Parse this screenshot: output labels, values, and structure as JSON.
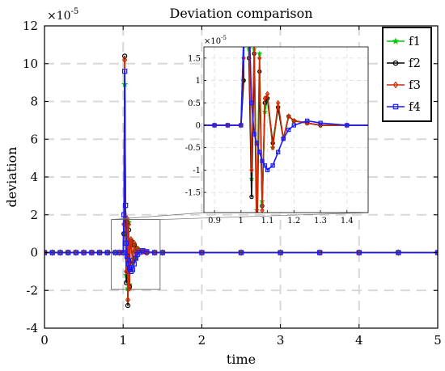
{
  "chart_data": {
    "type": "line",
    "title": "Deviation comparison",
    "xlabel": "time",
    "ylabel": "deviation",
    "xlim": [
      0,
      5
    ],
    "ylim": [
      -4,
      12
    ],
    "xticks": [
      0,
      1,
      2,
      3,
      4,
      5
    ],
    "yticks": [
      -4,
      -2,
      0,
      2,
      4,
      6,
      8,
      10,
      12
    ],
    "y_exponent_label": "×10",
    "y_exponent_power": "-5",
    "grid": true,
    "grid_style": "dashed",
    "legend_position": "top-right",
    "series": [
      {
        "name": "f1",
        "color": "#00c800",
        "marker": "star",
        "x": [
          0,
          0.1,
          0.2,
          0.3,
          0.4,
          0.5,
          0.6,
          0.7,
          0.8,
          0.9,
          0.95,
          1.0,
          1.01,
          1.02,
          1.03,
          1.04,
          1.05,
          1.06,
          1.07,
          1.08,
          1.09,
          1.1,
          1.12,
          1.14,
          1.16,
          1.18,
          1.2,
          1.25,
          1.3,
          1.4,
          1.5,
          2,
          2.5,
          3,
          3.5,
          4,
          4.5,
          5
        ],
        "y": [
          0,
          0,
          0,
          0,
          0,
          0,
          0,
          0,
          0,
          0,
          0,
          0,
          1,
          8.9,
          1.7,
          -1.2,
          1.7,
          -1.9,
          1.6,
          -1.7,
          0.3,
          0.6,
          -0.5,
          0.4,
          -0.3,
          0.2,
          0.1,
          0.05,
          0,
          0,
          0,
          0,
          0,
          0,
          0,
          0,
          0,
          0
        ]
      },
      {
        "name": "f2",
        "color": "#000000",
        "marker": "circle",
        "x": [
          0,
          0.1,
          0.2,
          0.3,
          0.4,
          0.5,
          0.6,
          0.7,
          0.8,
          0.9,
          0.95,
          1.0,
          1.01,
          1.02,
          1.03,
          1.04,
          1.05,
          1.06,
          1.07,
          1.08,
          1.09,
          1.1,
          1.12,
          1.14,
          1.16,
          1.18,
          1.2,
          1.25,
          1.3,
          1.4,
          1.5,
          2,
          2.5,
          3,
          3.5,
          4,
          4.5,
          5
        ],
        "y": [
          0,
          0,
          0,
          0,
          0,
          0,
          0,
          0,
          0,
          0,
          0,
          0,
          1,
          10.4,
          1.5,
          -1.6,
          1.6,
          -2.8,
          1.2,
          -1.8,
          0.5,
          0.6,
          -0.4,
          0.4,
          -0.3,
          0.2,
          0.1,
          0.05,
          0,
          0,
          0,
          0,
          0,
          0,
          0,
          0,
          0,
          0
        ]
      },
      {
        "name": "f3",
        "color": "#d42a00",
        "marker": "diamond",
        "x": [
          0,
          0.1,
          0.2,
          0.3,
          0.4,
          0.5,
          0.6,
          0.7,
          0.8,
          0.9,
          0.95,
          1.0,
          1.01,
          1.02,
          1.03,
          1.04,
          1.05,
          1.06,
          1.07,
          1.08,
          1.09,
          1.1,
          1.12,
          1.14,
          1.16,
          1.18,
          1.2,
          1.25,
          1.3,
          1.4,
          1.5,
          2,
          2.5,
          3,
          3.5,
          4,
          4.5,
          5
        ],
        "y": [
          0,
          0,
          0,
          0,
          0,
          0,
          0,
          0,
          0,
          0,
          0,
          0,
          1.5,
          10.2,
          1.8,
          -1.0,
          1.8,
          -2.5,
          1.5,
          -1.9,
          0.6,
          0.7,
          -0.5,
          0.5,
          -0.3,
          0.2,
          0.1,
          0.05,
          0,
          0,
          0,
          0,
          0,
          0,
          0,
          0,
          0,
          0
        ]
      },
      {
        "name": "f4",
        "color": "#1a1aff",
        "marker": "square",
        "x": [
          0,
          0.1,
          0.2,
          0.3,
          0.4,
          0.5,
          0.6,
          0.7,
          0.8,
          0.9,
          0.95,
          1.0,
          1.01,
          1.02,
          1.03,
          1.04,
          1.05,
          1.06,
          1.07,
          1.08,
          1.09,
          1.1,
          1.12,
          1.14,
          1.16,
          1.18,
          1.2,
          1.25,
          1.3,
          1.4,
          1.5,
          2,
          2.5,
          3,
          3.5,
          4,
          4.5,
          5
        ],
        "y": [
          0,
          0,
          0,
          0,
          0,
          0,
          0,
          0,
          0,
          0,
          0,
          0,
          2,
          9.6,
          2.5,
          0.5,
          -0.2,
          -0.4,
          -0.6,
          -0.8,
          -0.9,
          -1.0,
          -0.9,
          -0.6,
          -0.3,
          -0.1,
          0,
          0.1,
          0.05,
          0,
          0,
          0,
          0,
          0,
          0,
          0,
          0,
          0
        ]
      }
    ],
    "inset": {
      "xlim": [
        0.86,
        1.48
      ],
      "ylim": [
        -1.95,
        1.75
      ],
      "xticks": [
        0.9,
        1,
        1.1,
        1.2,
        1.3,
        1.4
      ],
      "yticks": [
        -1.5,
        -1,
        -0.5,
        0,
        0.5,
        1,
        1.5
      ],
      "y_exponent_label": "×10",
      "y_exponent_power": "-5",
      "zoom_box_x": [
        0.85,
        1.47
      ],
      "zoom_box_y": [
        -1.95,
        1.75
      ]
    }
  }
}
